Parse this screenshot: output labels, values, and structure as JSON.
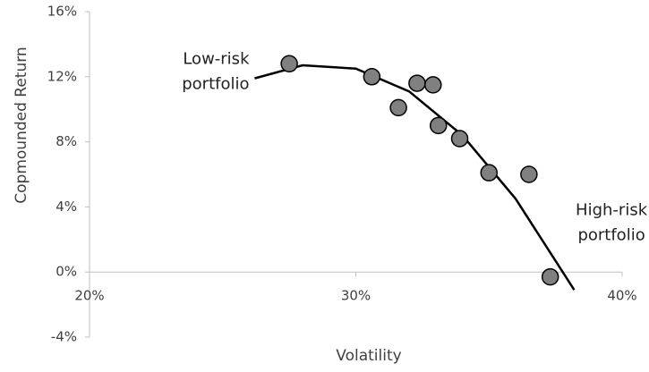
{
  "chart_data": {
    "type": "scatter",
    "x_label": "Volatility",
    "y_label": "Copmounded Return",
    "xlim": [
      20,
      40
    ],
    "xticks": [
      {
        "value": 20,
        "label": "20%"
      },
      {
        "value": 30,
        "label": "30%"
      },
      {
        "value": 40,
        "label": "40%"
      }
    ],
    "ylim": [
      -4,
      16
    ],
    "yticks": [
      {
        "value": -4,
        "label": "-4%"
      },
      {
        "value": 0,
        "label": "0%"
      },
      {
        "value": 4,
        "label": "4%"
      },
      {
        "value": 8,
        "label": "8%"
      },
      {
        "value": 12,
        "label": "12%"
      },
      {
        "value": 16,
        "label": "16%"
      }
    ],
    "series": [
      {
        "color": "#808080",
        "x": [
          27.5,
          30.6,
          31.6,
          32.3,
          32.9,
          33.1,
          33.9,
          35.0,
          36.5,
          37.3
        ],
        "values": [
          12.8,
          12.0,
          10.1,
          11.6,
          11.5,
          9.0,
          8.2,
          6.1,
          6.0,
          -0.3
        ]
      }
    ],
    "trend": {
      "color": "#000000",
      "x": [
        26.2,
        28,
        30,
        32,
        34,
        36,
        38.2
      ],
      "values": [
        11.9,
        12.7,
        12.5,
        11.1,
        8.4,
        4.5,
        -1.1
      ]
    },
    "annotations": [
      {
        "lines": [
          "Low-risk",
          "portfolio"
        ],
        "x": 26,
        "y": 12.3
      },
      {
        "lines": [
          "High-risk",
          "portfolio"
        ],
        "x": 39.6,
        "y": 3
      }
    ]
  }
}
